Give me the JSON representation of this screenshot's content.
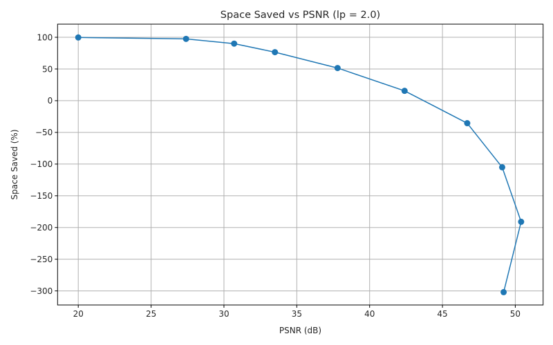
{
  "chart_data": {
    "type": "line",
    "title": "Space Saved vs PSNR (lp = 2.0)",
    "xlabel": "PSNR (dB)",
    "ylabel": "Space Saved (%)",
    "x": [
      20.0,
      27.4,
      30.7,
      33.5,
      37.8,
      42.4,
      46.7,
      49.1,
      50.4,
      49.2
    ],
    "series": [
      {
        "name": "Space Saved",
        "color": "#1f77b4",
        "marker": "circle",
        "values": [
          99.7,
          97.5,
          90.0,
          76.5,
          51.5,
          15.5,
          -35.5,
          -105.0,
          -191.0,
          -302.0
        ]
      }
    ],
    "xlim": [
      18.58,
      51.91
    ],
    "ylim": [
      -322.2,
      120.7
    ],
    "xticks": [
      20,
      25,
      30,
      35,
      40,
      45,
      50
    ],
    "yticks": [
      100,
      50,
      0,
      -50,
      -100,
      -150,
      -200,
      -250,
      -300
    ],
    "xtick_labels": [
      "20",
      "25",
      "30",
      "35",
      "40",
      "45",
      "50"
    ],
    "ytick_labels": [
      "100",
      "50",
      "0",
      "−50",
      "−100",
      "−150",
      "−200",
      "−250",
      "−300"
    ],
    "grid": true,
    "legend": null
  }
}
